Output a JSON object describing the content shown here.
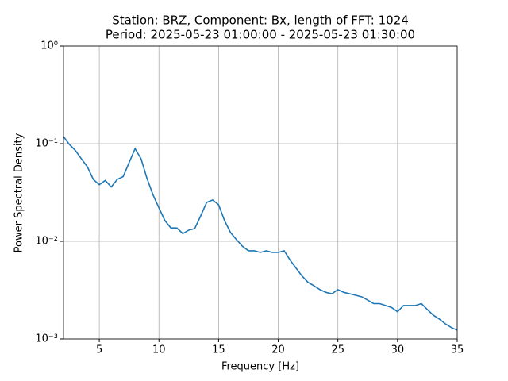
{
  "chart_data": {
    "type": "line",
    "title": [
      "Station: BRZ, Component: Bx, length of FFT: 1024",
      "Period: 2025-05-23 01:00:00 - 2025-05-23 01:30:00"
    ],
    "xlabel": "Frequency [Hz]",
    "ylabel": "Power Spectral Density",
    "x": [
      2,
      2.5,
      3,
      3.5,
      4,
      4.5,
      5,
      5.5,
      6,
      6.5,
      7,
      7.5,
      8,
      8.5,
      9,
      9.5,
      10,
      10.5,
      11,
      11.5,
      12,
      12.5,
      13,
      13.5,
      14,
      14.5,
      15,
      15.5,
      16,
      16.5,
      17,
      17.5,
      18,
      18.5,
      19,
      19.5,
      20,
      20.5,
      21,
      21.5,
      22,
      22.5,
      23,
      23.5,
      24,
      24.5,
      25,
      25.5,
      26,
      26.5,
      27,
      27.5,
      28,
      28.5,
      29,
      29.5,
      30,
      30.5,
      31,
      31.5,
      32,
      32.5,
      33,
      33.5,
      34,
      34.5,
      35
    ],
    "series": [
      {
        "name": "Bx",
        "color": "#1f77b4",
        "values": [
          0.118,
          0.098,
          0.085,
          0.07,
          0.058,
          0.043,
          0.038,
          0.042,
          0.036,
          0.043,
          0.046,
          0.064,
          0.089,
          0.07,
          0.044,
          0.03,
          0.022,
          0.0163,
          0.0137,
          0.0137,
          0.012,
          0.013,
          0.0135,
          0.0182,
          0.025,
          0.0265,
          0.0237,
          0.0163,
          0.0123,
          0.0104,
          0.0089,
          0.008,
          0.008,
          0.0077,
          0.008,
          0.0077,
          0.0077,
          0.008,
          0.0064,
          0.0053,
          0.0044,
          0.0038,
          0.0035,
          0.0032,
          0.003,
          0.0029,
          0.0032,
          0.003,
          0.0029,
          0.0028,
          0.0027,
          0.0025,
          0.0023,
          0.0023,
          0.0022,
          0.0021,
          0.0019,
          0.0022,
          0.0022,
          0.0022,
          0.0023,
          0.002,
          0.00175,
          0.0016,
          0.00143,
          0.00131,
          0.00123
        ]
      }
    ],
    "xlim": [
      2,
      35
    ],
    "xticks": [
      5,
      10,
      15,
      20,
      25,
      30,
      35
    ],
    "ylim": [
      0.001,
      1
    ],
    "ylog": true,
    "yticks": [
      {
        "value": 0.001,
        "label": "10⁻³"
      },
      {
        "value": 0.01,
        "label": "10⁻²"
      },
      {
        "value": 0.1,
        "label": "10⁻¹"
      },
      {
        "value": 1,
        "label": "10⁰"
      }
    ],
    "grid": true
  }
}
